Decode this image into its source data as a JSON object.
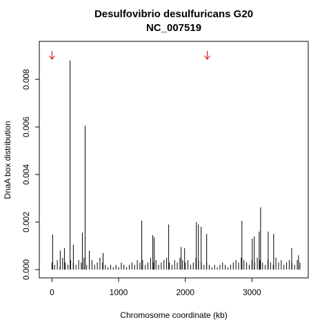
{
  "chart_data": {
    "type": "line",
    "style": "spikes",
    "title": "Desulfovibrio desulfuricans G20",
    "subtitle": "NC_007519",
    "x_label": "Chromosome coordinate (kb)",
    "y_label": "DnaA box distribution",
    "xlim": [
      -190,
      3845
    ],
    "ylim": [
      -0.00035,
      0.0096
    ],
    "xticks": [
      0,
      1000,
      2000,
      3000
    ],
    "yticks": [
      {
        "value": 0,
        "label": "0.000"
      },
      {
        "value": 0.002,
        "label": "0.002"
      },
      {
        "value": 0.004,
        "label": "0.004"
      },
      {
        "value": 0.006,
        "label": "0.006"
      },
      {
        "value": 0.008,
        "label": "0.008"
      }
    ],
    "series": [
      {
        "color": "#000000",
        "x": [
          0,
          40,
          80,
          120,
          160,
          200,
          240,
          280,
          320,
          360,
          400,
          440,
          480,
          520,
          560,
          600,
          640,
          680,
          720,
          760,
          800,
          840,
          880,
          920,
          960,
          1000,
          1040,
          1080,
          1120,
          1160,
          1200,
          1240,
          1280,
          1320,
          1360,
          1400,
          1440,
          1480,
          1520,
          1560,
          1600,
          1640,
          1680,
          1720,
          1760,
          1800,
          1840,
          1880,
          1920,
          1960,
          2000,
          2040,
          2080,
          2120,
          2160,
          2200,
          2240,
          2280,
          2320,
          2360,
          2400,
          2440,
          2480,
          2520,
          2560,
          2600,
          2640,
          2680,
          2720,
          2760,
          2800,
          2840,
          2880,
          2920,
          2960,
          3000,
          3040,
          3080,
          3120,
          3160,
          3200,
          3240,
          3280,
          3320,
          3360,
          3400,
          3440,
          3480,
          3520,
          3560,
          3600,
          3640,
          3680,
          3720
        ],
        "values": [
          0.0003,
          0.0002,
          0.0004,
          0.0001,
          0.0005,
          0.0003,
          0.0002,
          0.0004,
          0.0003,
          0.0002,
          0.0004,
          0.0003,
          0.0005,
          0.0002,
          0.0003,
          0.0004,
          0.0002,
          0.0003,
          0.0005,
          0.0003,
          0.0002,
          0.0001,
          0.0002,
          0.0001,
          0.0002,
          0.0001,
          0.0003,
          0.0002,
          0.0001,
          0.0002,
          0.0003,
          0.0002,
          0.0004,
          0.0003,
          0.0004,
          0.0002,
          0.0003,
          0.0005,
          0.0003,
          0.0004,
          0.0002,
          0.0003,
          0.0004,
          0.0005,
          0.0003,
          0.0002,
          0.0004,
          0.0003,
          0.0005,
          0.0004,
          0.0003,
          0.0004,
          0.0002,
          0.0003,
          0.0005,
          0.0004,
          0.0003,
          0.0002,
          0.0003,
          0.0002,
          0.0001,
          0.0002,
          0.0001,
          0.0002,
          0.0003,
          0.0002,
          0.0001,
          0.0002,
          0.0003,
          0.0004,
          0.0003,
          0.0005,
          0.0004,
          0.0003,
          0.0002,
          0.0004,
          0.0003,
          0.0005,
          0.0004,
          0.0003,
          0.0002,
          0.0004,
          0.0003,
          0.0002,
          0.0005,
          0.0003,
          0.0004,
          0.0002,
          0.0003,
          0.0004,
          0.0003,
          0.0002,
          0.0004,
          0.0003
        ]
      },
      {
        "color": "#000000",
        "x": [
          10,
          124,
          187,
          272,
          321,
          456,
          497,
          560,
          767,
          1347,
          1513,
          1534,
          1751,
          1938,
          1990,
          2166,
          2197,
          2238,
          2321,
          2850,
          3005,
          3036,
          3109,
          3130,
          3244,
          3326,
          3596,
          3699
        ],
        "values": [
          0.00148,
          0.0008,
          0.0009,
          0.0088,
          0.00105,
          0.00155,
          0.00605,
          0.0008,
          0.0007,
          0.00206,
          0.00145,
          0.00135,
          0.0019,
          0.00095,
          0.0009,
          0.002,
          0.0019,
          0.0018,
          0.0015,
          0.00205,
          0.0013,
          0.0014,
          0.0016,
          0.00262,
          0.0016,
          0.0015,
          0.0009,
          0.0006
        ]
      }
    ],
    "arrows": {
      "x": [
        0,
        2330
      ],
      "y_from": 0.0092,
      "y_to": 0.00885,
      "color": "#d00000"
    }
  }
}
